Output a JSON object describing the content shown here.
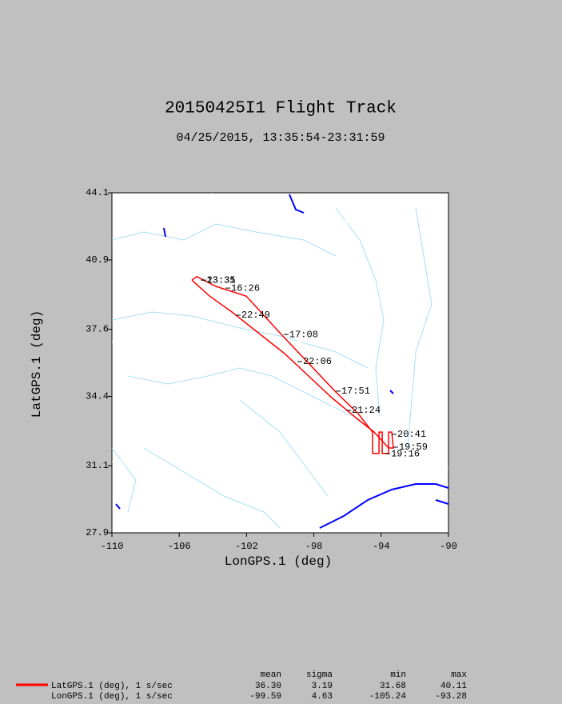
{
  "chart_data": {
    "type": "line",
    "title": "20150425I1 Flight Track",
    "subtitle": "04/25/2015, 13:35:54-23:31:59",
    "x_label": "LonGPS.1 (deg)",
    "y_label": "LatGPS.1 (deg)",
    "x": [
      -105.25,
      -104.96,
      -103.82,
      -102.02,
      -99.93,
      -96.7,
      -95.37,
      -94.51,
      -94.51,
      -94.13,
      -94.13,
      -93.94,
      -93.94,
      -93.56,
      -93.56,
      -93.37,
      -93.28,
      -93.56,
      -94.42,
      -95.51,
      -96.94,
      -99.74,
      -102.87,
      -104.2,
      -105.25
    ],
    "series": [
      {
        "color": "#ff0000",
        "values": [
          39.94,
          40.11,
          39.64,
          39.18,
          37.35,
          34.61,
          33.58,
          32.7,
          31.68,
          31.68,
          32.7,
          32.7,
          31.68,
          31.68,
          32.7,
          32.7,
          31.94,
          31.94,
          32.7,
          33.39,
          34.34,
          36.44,
          38.42,
          39.18,
          39.94
        ]
      }
    ],
    "xlim": [
      -110,
      -90
    ],
    "xticks": [
      -110,
      -106,
      -102,
      -98,
      -94,
      -90
    ],
    "ylim": [
      27.9,
      44.1
    ],
    "yticks": [
      27.9,
      31.1,
      34.4,
      37.6,
      40.9,
      44.1
    ],
    "annotations": [
      {
        "text": "13:35",
        "x": -104.7,
        "y": 39.94
      },
      {
        "text": "23:31",
        "x": -104.7,
        "y": 39.94
      },
      {
        "text": "16:26",
        "x": -103.25,
        "y": 39.56
      },
      {
        "text": "22:49",
        "x": -102.64,
        "y": 38.27
      },
      {
        "text": "17:08",
        "x": -99.79,
        "y": 37.35
      },
      {
        "text": "22:06",
        "x": -98.98,
        "y": 36.06
      },
      {
        "text": "17:51",
        "x": -96.7,
        "y": 34.65
      },
      {
        "text": "21:24",
        "x": -96.08,
        "y": 33.73
      },
      {
        "text": "20:41",
        "x": -93.37,
        "y": 32.59
      },
      {
        "text": "19:59",
        "x": -93.28,
        "y": 31.98
      },
      {
        "text": "19:16",
        "x": -93.75,
        "y": 31.67
      }
    ]
  },
  "stats": {
    "columns": [
      "mean",
      "sigma",
      "min",
      "max"
    ],
    "rows": [
      {
        "name": "LatGPS.1 (deg), 1 s/sec",
        "values": [
          "36.30",
          "3.19",
          "31.68",
          "40.11"
        ]
      },
      {
        "name": "LonGPS.1 (deg), 1 s/sec",
        "values": [
          "-99.59",
          "4.63",
          "-105.24",
          "-93.28"
        ]
      }
    ]
  }
}
